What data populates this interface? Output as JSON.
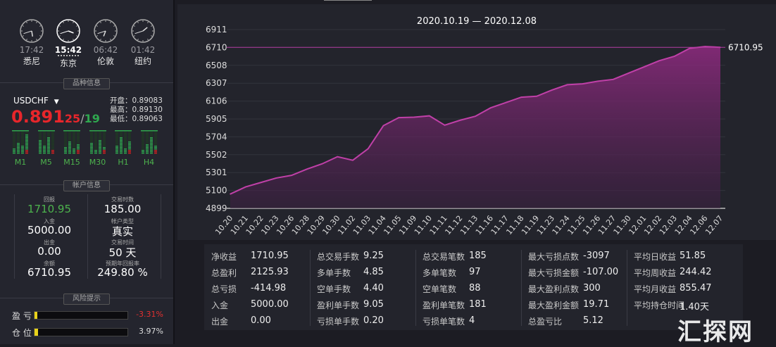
{
  "clocks": [
    {
      "time": "17:42",
      "city": "悉尼",
      "selected": false,
      "h": 17,
      "m": 42
    },
    {
      "time": "15:42",
      "city": "东京",
      "selected": true,
      "h": 15,
      "m": 42
    },
    {
      "time": "06:42",
      "city": "伦敦",
      "selected": false,
      "h": 6,
      "m": 42
    },
    {
      "time": "01:42",
      "city": "纽约",
      "selected": false,
      "h": 1,
      "m": 42
    }
  ],
  "symbol_info": {
    "section": "品种信息",
    "symbol": "USDCHF",
    "price_main": "0.891",
    "price_small": "25",
    "price_sep": "/",
    "price_small2": "19",
    "open": "开盘：0.89083",
    "high": "最高：0.89130",
    "low": "最低：0.89063",
    "timeframes": [
      "M1",
      "M5",
      "M15",
      "M30",
      "H1",
      "H4"
    ]
  },
  "account": {
    "section": "帐户信息",
    "items": [
      {
        "label": "回报",
        "value": "1710.95"
      },
      {
        "label": "交易时数",
        "value": "185.00"
      },
      {
        "label": "入金",
        "value": "5000.00"
      },
      {
        "label": "帐户类型",
        "value": "真实"
      },
      {
        "label": "出金",
        "value": "0.00"
      },
      {
        "label": "交易时间",
        "value": "50 天"
      },
      {
        "label": "余额",
        "value": "6710.95"
      },
      {
        "label": "预期年回报率",
        "value": "249.80 %"
      }
    ]
  },
  "risk": {
    "section": "风险提示",
    "rows": [
      {
        "label": "盈 亏",
        "value": "-3.31%",
        "fill": 0.0331,
        "color": "#e23030"
      },
      {
        "label": "仓 位",
        "value": "3.97%",
        "fill": 0.0397,
        "color": "#dddddd"
      }
    ]
  },
  "chart_data": {
    "type": "area",
    "title": "2020.10.19 — 2020.12.08",
    "yticks": [
      "6911",
      "6710",
      "6508",
      "6307",
      "6106",
      "5905",
      "5704",
      "5502",
      "5301",
      "5100",
      "4899"
    ],
    "ylim": [
      4899,
      6911
    ],
    "last_label": "6710.95",
    "last_value": 6710.95,
    "x": [
      "10.20",
      "10.21",
      "10.22",
      "10.23",
      "10.26",
      "10.28",
      "10.29",
      "10.30",
      "11.02",
      "11.03",
      "11.04",
      "11.05",
      "11.09",
      "11.10",
      "11.11",
      "11.12",
      "11.13",
      "11.16",
      "11.17",
      "11.18",
      "11.19",
      "11.23",
      "11.24",
      "11.25",
      "11.26",
      "11.27",
      "11.30",
      "12.01",
      "12.02",
      "12.03",
      "12.04",
      "12.06",
      "12.07"
    ],
    "values": [
      5060,
      5140,
      5190,
      5240,
      5270,
      5340,
      5400,
      5480,
      5440,
      5570,
      5830,
      5920,
      5925,
      5940,
      5835,
      5890,
      5935,
      6030,
      6090,
      6150,
      6160,
      6230,
      6290,
      6300,
      6330,
      6350,
      6420,
      6490,
      6560,
      6610,
      6700,
      6720,
      6711
    ],
    "line_color": "#c040a8"
  },
  "stats": {
    "col1": [
      [
        "净收益",
        "1710.95"
      ],
      [
        "总盈利",
        "2125.93"
      ],
      [
        "总亏损",
        "-414.98"
      ],
      [
        "入金",
        "5000.00"
      ],
      [
        "出金",
        "0.00"
      ]
    ],
    "col2": [
      [
        "总交易手数",
        "9.25"
      ],
      [
        "多单手数",
        "4.85"
      ],
      [
        "空单手数",
        "4.40"
      ],
      [
        "盈利单手数",
        "9.05"
      ],
      [
        "亏损单手数",
        "0.20"
      ]
    ],
    "col3": [
      [
        "总交易笔数",
        "185"
      ],
      [
        "多单笔数",
        "97"
      ],
      [
        "空单笔数",
        "88"
      ],
      [
        "盈利单笔数",
        "181"
      ],
      [
        "亏损单笔数",
        "4"
      ]
    ],
    "col4": [
      [
        "最大亏损点数",
        "-3097"
      ],
      [
        "最大亏损金额",
        "-107.00"
      ],
      [
        "最大盈利点数",
        "300"
      ],
      [
        "最大盈利金额",
        "19.71"
      ],
      [
        "总盈亏比",
        "5.12"
      ]
    ],
    "col5": [
      [
        "平均日收益",
        "51.85"
      ],
      [
        "平均周收益",
        "244.42"
      ],
      [
        "平均月收益",
        "855.47"
      ],
      [
        "平均持仓时间",
        "1.40天"
      ]
    ]
  },
  "watermark": "汇探网"
}
